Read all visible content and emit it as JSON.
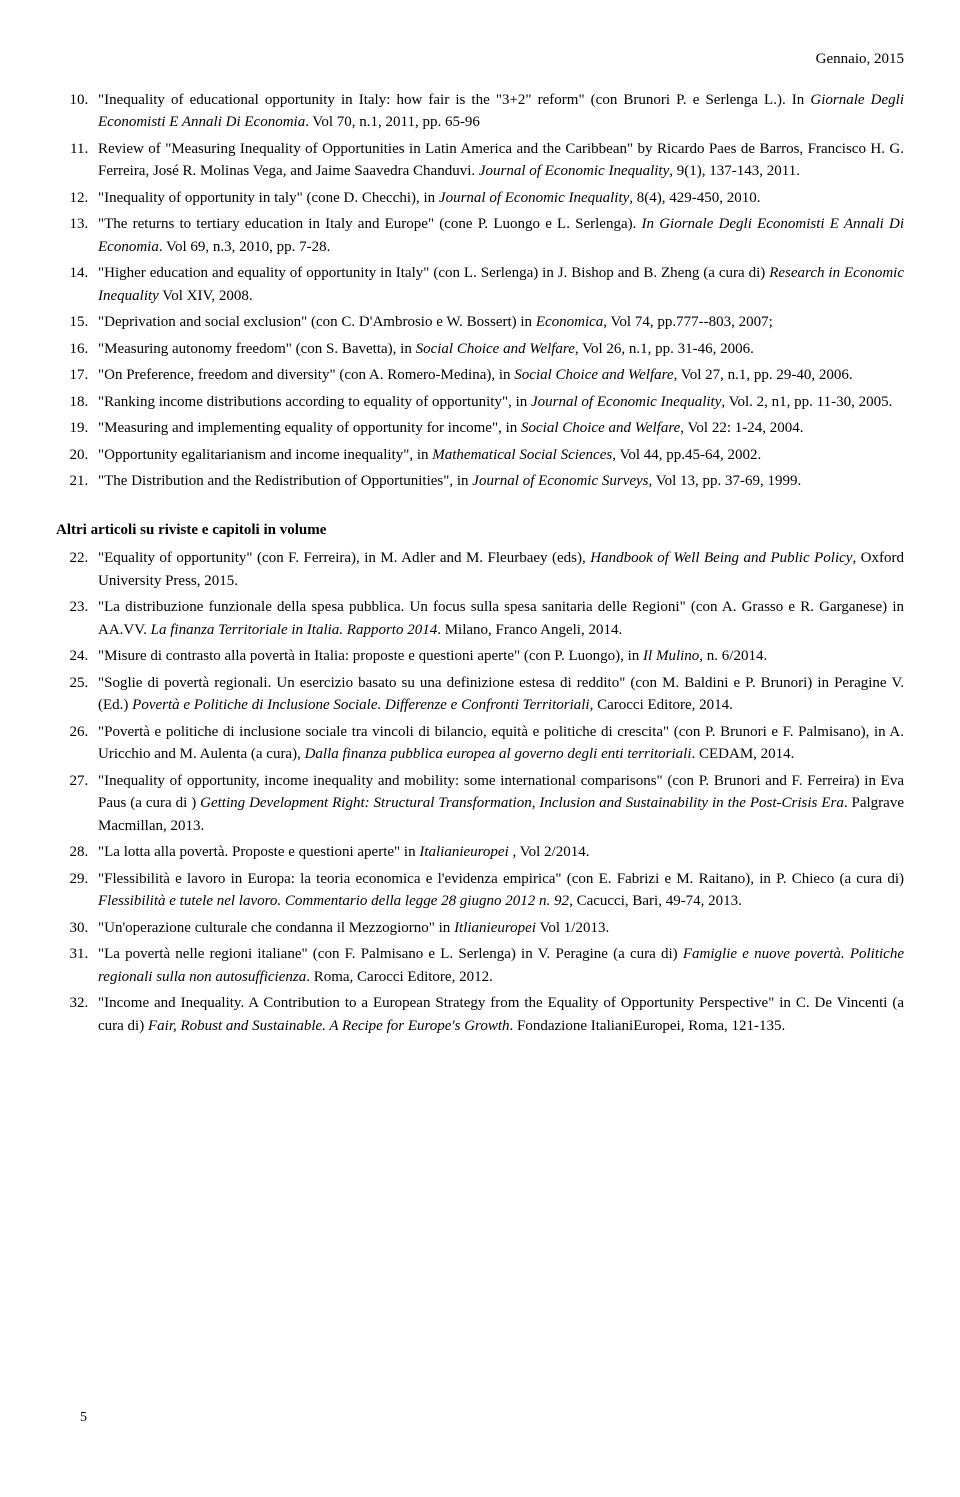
{
  "header": {
    "date": "Gennaio, 2015"
  },
  "list1_start": 10,
  "list1": [
    "\"Inequality of educational opportunity in Italy: how fair is the \"3+2\" reform\" (con Brunori P. e Serlenga L.). In <i>Giornale Degli Economisti E Annali Di Economia</i>. Vol 70, n.1, 2011, pp. 65-96",
    "Review of \"Measuring Inequality of Opportunities in Latin America and the Caribbean\" by Ricardo Paes de Barros, Francisco H. G. Ferreira, José R. Molinas Vega, and Jaime Saavedra Chanduvi. <i>Journal of Economic Inequality</i>, 9(1), 137-143, 2011.",
    "\"Inequality of opportunity in taly\" (cone D. Checchi), in <i>Journal of Economic Inequality</i>, 8(4), 429-450, 2010.",
    "\"The returns to tertiary education in Italy and Europe\" (cone P. Luongo e L. Serlenga). <i>In Giornale Degli Economisti E Annali Di Economia</i>. Vol 69, n.3, 2010, pp. 7-28.",
    "\"Higher education and equality of opportunity in Italy\" (con L. Serlenga) in J. Bishop and B. Zheng (a cura di) <i>Research in Economic Inequality</i> Vol XIV, 2008.",
    "\"Deprivation and social exclusion\" (con C. D'Ambrosio e W. Bossert) in <i>Economica</i>, Vol 74, pp.777--803, 2007;",
    "\"Measuring autonomy freedom\" (con S. Bavetta), in <i>Social Choice and Welfare</i>, Vol 26, n.1, pp. 31-46, 2006.",
    "\"On Preference, freedom and diversity\" (con A. Romero-Medina), in <i>Social Choice and Welfare</i>, Vol 27, n.1, pp. 29-40, 2006.",
    "\"Ranking income distributions according to equality of opportunity\", in <i>Journal of Economic Inequality</i>, Vol. 2, n1, pp. 11-30, 2005.",
    "\"Measuring and implementing equality of opportunity for income\", in <i>Social Choice and Welfare</i>, Vol 22: 1-24, 2004.",
    "\"Opportunity egalitarianism and income inequality\", in <i>Mathematical Social Sciences</i>, Vol 44, pp.45-64, 2002.",
    "\"The Distribution and the Redistribution of Opportunities\", in <i>Journal of Economic Surveys</i>, Vol 13, pp. 37-69, 1999."
  ],
  "section2_heading": "Altri articoli su riviste e capitoli in volume",
  "list2_start": 22,
  "list2": [
    "\"Equality of opportunity\" (con F. Ferreira), in M. Adler and M. Fleurbaey (eds), <i>Handbook of Well Being and Public Policy</i>, Oxford University Press, 2015.",
    "\"La distribuzione funzionale della spesa pubblica. Un focus sulla spesa sanitaria delle Regioni\" (con A. Grasso e R. Garganese) in AA.VV. <i>La finanza Territoriale in Italia. Rapporto 2014</i>. Milano, Franco Angeli, 2014.",
    "\"Misure di contrasto alla povertà in Italia: proposte e questioni aperte\" (con P. Luongo), in <i>Il Mulino</i>, n. 6/2014.",
    "\"Soglie di povertà regionali. Un esercizio basato su una definizione estesa di reddito\" (con M. Baldini e P. Brunori) in Peragine V. (Ed.) <i>Povertà e Politiche di Inclusione Sociale. Differenze e Confronti Territoriali</i>, Carocci Editore, 2014.",
    "\"Povertà e politiche di inclusione sociale tra vincoli di bilancio, equità e politiche di crescita\" (con P. Brunori e F. Palmisano), in A. Uricchio and M. Aulenta (a cura), <i>Dalla finanza pubblica europea al governo degli enti territoriali</i>. CEDAM, 2014.",
    "\"Inequality of opportunity, income inequality and mobility: some international comparisons\" (con P. Brunori and F. Ferreira) in Eva Paus (a cura di ) <i>Getting Development Right: Structural Transformation, Inclusion and Sustainability in the Post-Crisis Era</i>. Palgrave Macmillan, 2013.",
    "\"La lotta alla povertà. Proposte e questioni aperte\" in <i>Italianieuropei</i> , Vol 2/2014.",
    "\"Flessibilità e lavoro in Europa: la teoria economica e l'evidenza empirica\" (con E. Fabrizi e M. Raitano), in P. Chieco (a cura di) <i>Flessibilità e tutele nel lavoro. Commentario della legge 28 giugno 2012 n. 92</i>, Cacucci, Bari, 49-74, 2013.",
    "\"Un'operazione culturale che condanna il Mezzogiorno\" in <i>Itlianieuropei</i> Vol 1/2013.",
    "\"La povertà nelle regioni italiane\" (con F. Palmisano e L. Serlenga) in V. Peragine (a cura di) <i>Famiglie e nuove povertà. Politiche regionali sulla non autosufficienza</i>. Roma, Carocci Editore, 2012.",
    " \"Income and Inequality. A Contribution to a European Strategy from the Equality of Opportunity Perspective\" in C. De Vincenti (a cura di) <i>Fair, Robust and Sustainable. A Recipe for Europe's Growth</i>. Fondazione ItalianiEuropei, Roma, 121-135."
  ],
  "page_number": "5"
}
